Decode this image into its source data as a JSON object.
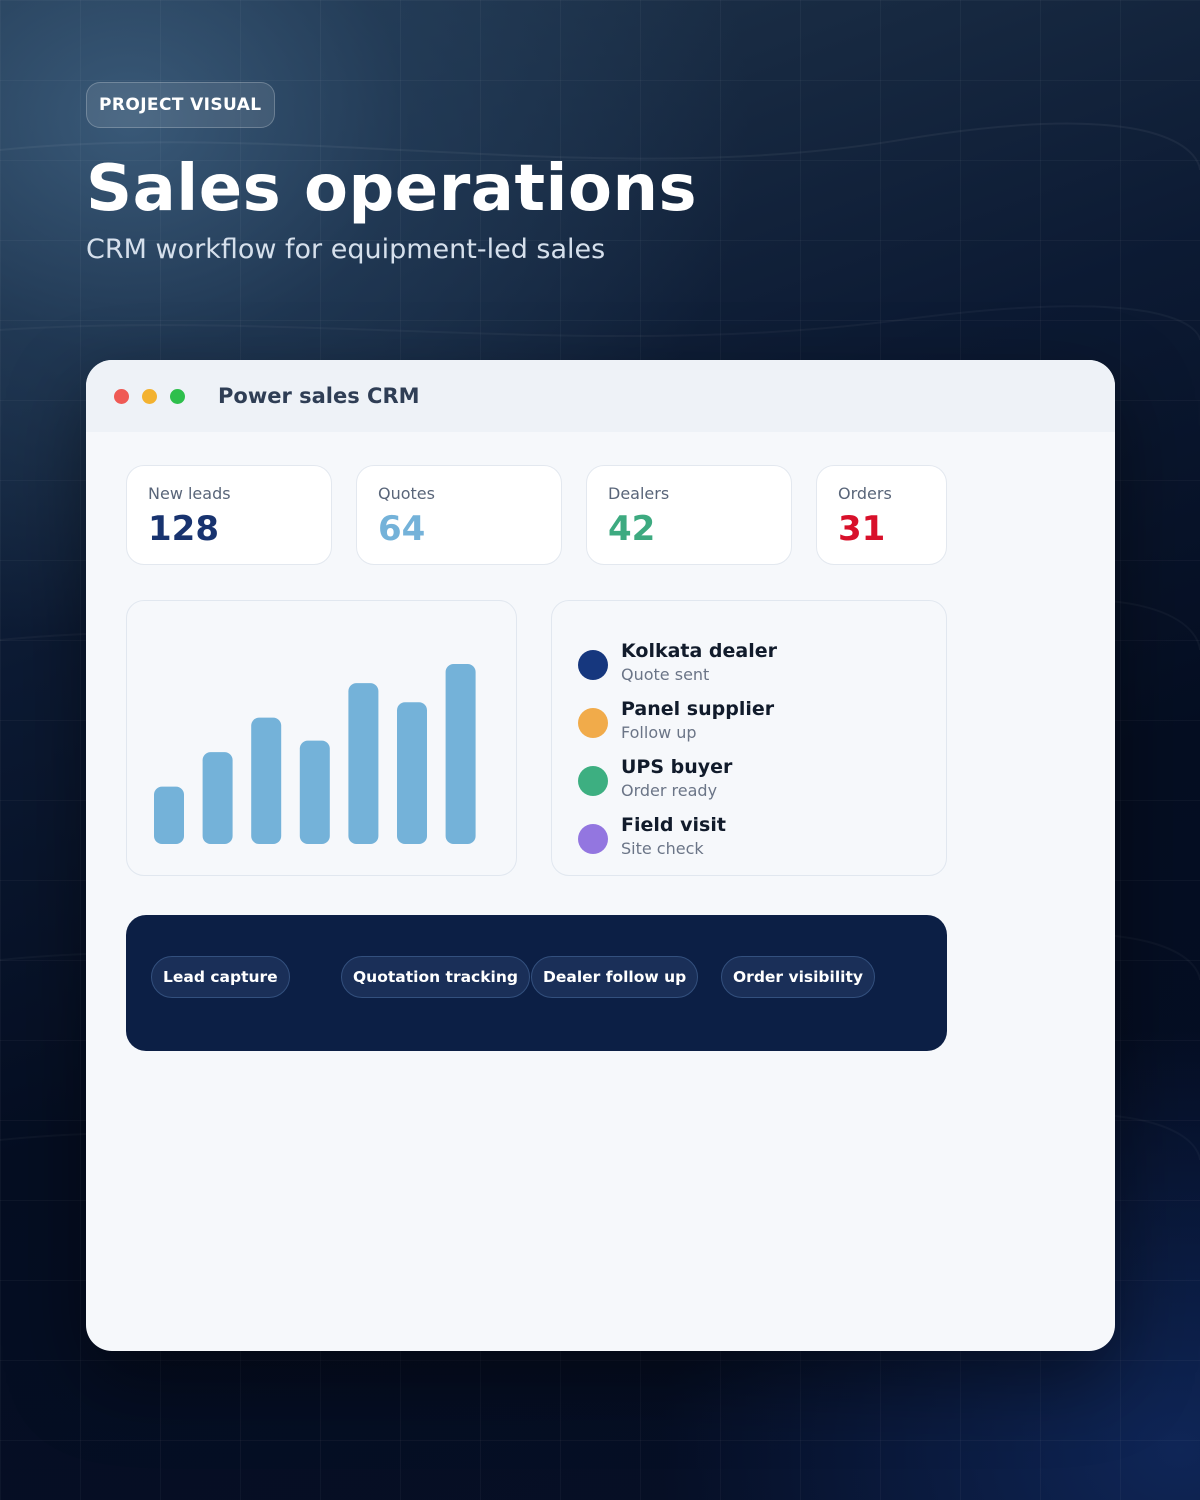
{
  "hero": {
    "badge": "PROJECT VISUAL",
    "title": "Sales operations",
    "subtitle": "CRM workflow for equipment-led sales"
  },
  "window": {
    "title": "Power sales CRM",
    "controls": [
      "close",
      "minimize",
      "maximize"
    ]
  },
  "stats": [
    {
      "label": "New leads",
      "value": "128",
      "color": "#18336f"
    },
    {
      "label": "Quotes",
      "value": "64",
      "color": "#74b2d9"
    },
    {
      "label": "Dealers",
      "value": "42",
      "color": "#3daa80"
    },
    {
      "label": "Orders",
      "value": "31",
      "color": "#d8102a"
    }
  ],
  "chart_data": {
    "type": "bar",
    "values": [
      1.5,
      2.4,
      3.3,
      2.7,
      4.2,
      3.7,
      4.7
    ],
    "ylim": [
      0,
      4.7
    ],
    "bar_color": "#74b2d9",
    "grid": false
  },
  "activity": [
    {
      "name": "Kolkata dealer",
      "status": "Quote sent",
      "color": "#16377e"
    },
    {
      "name": "Panel supplier",
      "status": "Follow up",
      "color": "#f1ab4a"
    },
    {
      "name": "UPS buyer",
      "status": "Order ready",
      "color": "#3daf81"
    },
    {
      "name": "Field visit",
      "status": "Site check",
      "color": "#9376e0"
    }
  ],
  "chips": [
    "Lead capture",
    "Quotation tracking",
    "Dealer follow up",
    "Order visibility"
  ]
}
